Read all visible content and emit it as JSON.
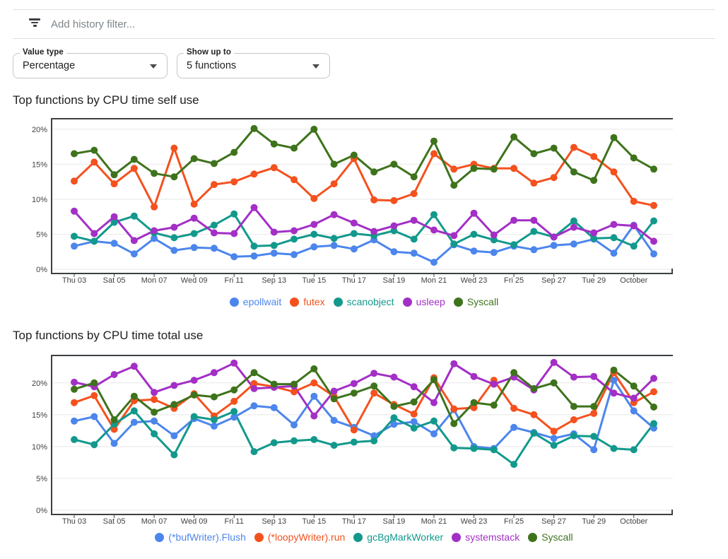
{
  "toolbar": {
    "filter_placeholder": "Add history filter...",
    "filter_icon": "filter-list-icon"
  },
  "controls": {
    "value_type": {
      "label": "Value type",
      "value": "Percentage"
    },
    "show_up_to": {
      "label": "Show up to",
      "value": "5 functions"
    }
  },
  "chart_data": [
    {
      "type": "line",
      "title": "Top functions by CPU time self use",
      "ylim": [
        0,
        21.5
      ],
      "yticks": [
        0,
        5,
        10,
        15,
        20
      ],
      "ytick_suffix": "%",
      "grid": true,
      "legend_position": "bottom",
      "tick_labels": [
        "Thu 03",
        "Sat 05",
        "Mon 07",
        "Wed 09",
        "Fri 11",
        "Sep 13",
        "Tue 15",
        "Thu 17",
        "Sat 19",
        "Mon 21",
        "Wed 23",
        "Fri 25",
        "Sep 27",
        "Tue 29",
        "October"
      ],
      "series": [
        {
          "name": "epollwait",
          "color": "#4C86EC",
          "values": [
            3.3,
            4.0,
            3.7,
            2.2,
            4.4,
            2.7,
            3.1,
            3.0,
            1.8,
            1.9,
            2.3,
            2.1,
            3.2,
            3.4,
            2.9,
            4.2,
            2.5,
            2.3,
            1.0,
            3.5,
            2.6,
            2.4,
            3.3,
            2.8,
            3.4,
            3.6,
            4.3,
            2.3,
            6.3,
            2.2
          ]
        },
        {
          "name": "futex",
          "color": "#F4511E",
          "values": [
            12.6,
            15.3,
            12.2,
            14.4,
            8.9,
            17.3,
            9.3,
            12.1,
            12.5,
            13.6,
            14.5,
            12.8,
            10.1,
            12.2,
            15.8,
            9.9,
            9.8,
            10.8,
            16.5,
            14.3,
            15.0,
            14.4,
            14.4,
            12.3,
            13.1,
            17.4,
            16.1,
            13.9,
            9.7,
            9.1
          ]
        },
        {
          "name": "scanobject",
          "color": "#12998C",
          "values": [
            4.7,
            4.0,
            6.7,
            7.6,
            5.2,
            4.5,
            5.1,
            6.3,
            7.9,
            3.3,
            3.4,
            4.3,
            5.0,
            4.4,
            5.1,
            4.8,
            5.5,
            4.3,
            7.8,
            3.6,
            5.0,
            4.2,
            3.5,
            5.4,
            4.6,
            6.9,
            4.4,
            4.5,
            3.3,
            6.9
          ]
        },
        {
          "name": "usleep",
          "color": "#A32FC6",
          "values": [
            8.3,
            5.1,
            7.5,
            4.1,
            5.5,
            6.0,
            7.3,
            5.2,
            5.1,
            8.8,
            5.3,
            5.5,
            6.4,
            7.8,
            6.6,
            5.4,
            6.2,
            7.0,
            5.6,
            4.8,
            8.0,
            4.9,
            7.0,
            7.0,
            4.6,
            6.0,
            5.2,
            6.4,
            6.2,
            4.0
          ]
        },
        {
          "name": "Syscall",
          "color": "#3E731C",
          "values": [
            16.5,
            17.0,
            13.5,
            15.7,
            13.7,
            13.2,
            15.8,
            15.1,
            16.7,
            20.1,
            17.9,
            17.3,
            20.0,
            15.0,
            16.3,
            13.9,
            15.0,
            13.2,
            18.3,
            12.0,
            14.4,
            14.3,
            18.9,
            16.5,
            17.3,
            13.9,
            12.7,
            18.8,
            15.9,
            14.3
          ]
        }
      ]
    },
    {
      "type": "line",
      "title": "Top functions by CPU time total use",
      "ylim": [
        0,
        24.3
      ],
      "yticks": [
        0,
        5,
        10,
        15,
        20
      ],
      "ytick_suffix": "%",
      "grid": true,
      "legend_position": "bottom",
      "tick_labels": [
        "Thu 03",
        "Sat 05",
        "Mon 07",
        "Wed 09",
        "Fri 11",
        "Sep 13",
        "Tue 15",
        "Thu 17",
        "Sat 19",
        "Mon 21",
        "Wed 23",
        "Fri 25",
        "Sep 27",
        "Tue 29",
        "October"
      ],
      "series": [
        {
          "name": "(*bufWriter).Flush",
          "color": "#4C86EC",
          "values": [
            14.0,
            14.7,
            10.5,
            13.8,
            14.0,
            11.7,
            14.4,
            13.2,
            14.6,
            16.4,
            16.1,
            13.4,
            17.9,
            14.1,
            13.0,
            11.7,
            13.5,
            13.9,
            12.0,
            15.8,
            10.0,
            9.7,
            13.0,
            12.2,
            11.3,
            12.0,
            9.5,
            20.4,
            15.6,
            12.9
          ]
        },
        {
          "name": "(*loopyWriter).run",
          "color": "#F4511E",
          "values": [
            16.9,
            18.0,
            12.7,
            17.2,
            17.4,
            16.0,
            18.3,
            14.8,
            17.1,
            19.9,
            19.4,
            18.6,
            20.0,
            17.9,
            12.6,
            18.4,
            16.6,
            15.1,
            20.8,
            15.9,
            16.1,
            20.4,
            16.0,
            15.0,
            12.4,
            14.2,
            15.2,
            21.6,
            16.9,
            18.6
          ]
        },
        {
          "name": "gcBgMarkWorker",
          "color": "#12998C",
          "values": [
            11.1,
            10.3,
            13.5,
            15.6,
            12.0,
            8.7,
            14.7,
            14.2,
            15.5,
            9.2,
            10.6,
            10.9,
            11.1,
            10.2,
            10.7,
            10.9,
            14.5,
            12.9,
            14.0,
            9.8,
            9.7,
            9.5,
            7.2,
            12.1,
            10.2,
            11.7,
            11.6,
            9.7,
            9.5,
            13.6
          ]
        },
        {
          "name": "systemstack",
          "color": "#A32FC6",
          "values": [
            20.1,
            19.4,
            21.3,
            22.6,
            18.5,
            19.6,
            20.4,
            21.6,
            23.1,
            19.1,
            19.3,
            19.5,
            14.8,
            18.7,
            19.9,
            21.5,
            20.9,
            19.4,
            16.9,
            23.0,
            21.0,
            19.8,
            20.9,
            18.9,
            23.2,
            20.9,
            21.0,
            18.4,
            17.6,
            20.7
          ]
        },
        {
          "name": "Syscall",
          "color": "#3E731C",
          "values": [
            19.0,
            20.0,
            14.2,
            17.9,
            15.4,
            16.6,
            18.1,
            17.8,
            18.9,
            21.6,
            19.8,
            19.8,
            22.2,
            17.5,
            18.4,
            19.5,
            16.3,
            17.0,
            20.5,
            13.6,
            16.9,
            16.5,
            21.6,
            19.1,
            20.0,
            16.3,
            16.3,
            22.0,
            19.5,
            16.2
          ]
        }
      ]
    }
  ]
}
